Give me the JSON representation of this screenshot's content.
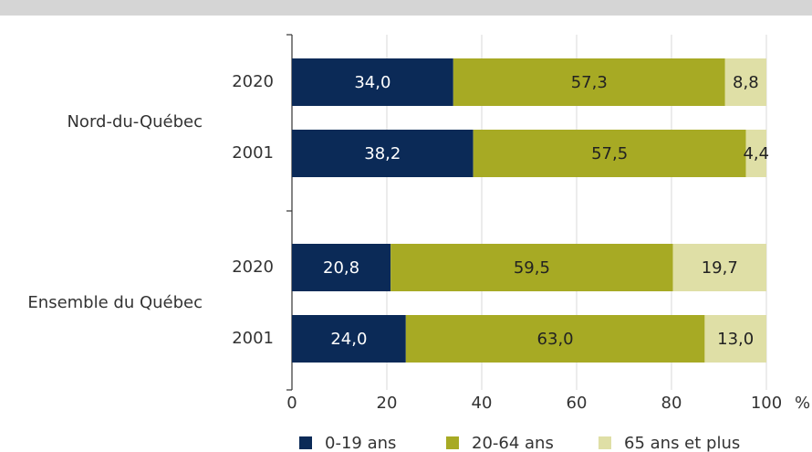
{
  "chart_data": {
    "type": "bar",
    "orientation": "horizontal",
    "stacked": true,
    "groups": [
      {
        "name": "Nord-du-Québec",
        "rows": [
          {
            "year": "2020",
            "values": [
              34.0,
              57.3,
              8.8
            ],
            "labels": [
              "34,0",
              "57,3",
              "8,8"
            ]
          },
          {
            "year": "2001",
            "values": [
              38.2,
              57.5,
              4.4
            ],
            "labels": [
              "38,2",
              "57,5",
              "4,4"
            ]
          }
        ]
      },
      {
        "name": "Ensemble du Québec",
        "rows": [
          {
            "year": "2020",
            "values": [
              20.8,
              59.5,
              19.7
            ],
            "labels": [
              "20,8",
              "59,5",
              "19,7"
            ]
          },
          {
            "year": "2001",
            "values": [
              24.0,
              63.0,
              13.0
            ],
            "labels": [
              "24,0",
              "63,0",
              "13,0"
            ]
          }
        ]
      }
    ],
    "series": [
      {
        "name": "0-19 ans",
        "color": "#0b2a57"
      },
      {
        "name": "20-64 ans",
        "color": "#a7aa24"
      },
      {
        "name": "65 ans et plus",
        "color": "#dfdfa6"
      }
    ],
    "x_ticks": [
      "0",
      "20",
      "40",
      "60",
      "80",
      "100"
    ],
    "x_unit": "%",
    "xlim": [
      0,
      100
    ],
    "grid": true,
    "legend_position": "bottom"
  }
}
